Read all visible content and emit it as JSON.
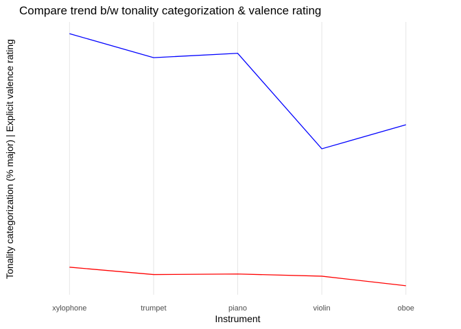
{
  "chart_data": {
    "type": "line",
    "title": "Compare trend b/w tonality categorization & valence rating",
    "xlabel": "Instrument",
    "ylabel": "Tonality categorization (% major) | Explicit valence rating",
    "categories": [
      "xylophone",
      "trumpet",
      "piano",
      "violin",
      "oboe"
    ],
    "ylim": [
      0,
      100
    ],
    "y_ticks_shown": false,
    "grid": "vertical-major-only",
    "series": [
      {
        "color": "#0000ff",
        "values": [
          95.7,
          86.9,
          88.5,
          53.5,
          62.3
        ]
      },
      {
        "color": "#ff0000",
        "values": [
          10.1,
          7.4,
          7.6,
          6.8,
          3.3
        ]
      }
    ]
  }
}
